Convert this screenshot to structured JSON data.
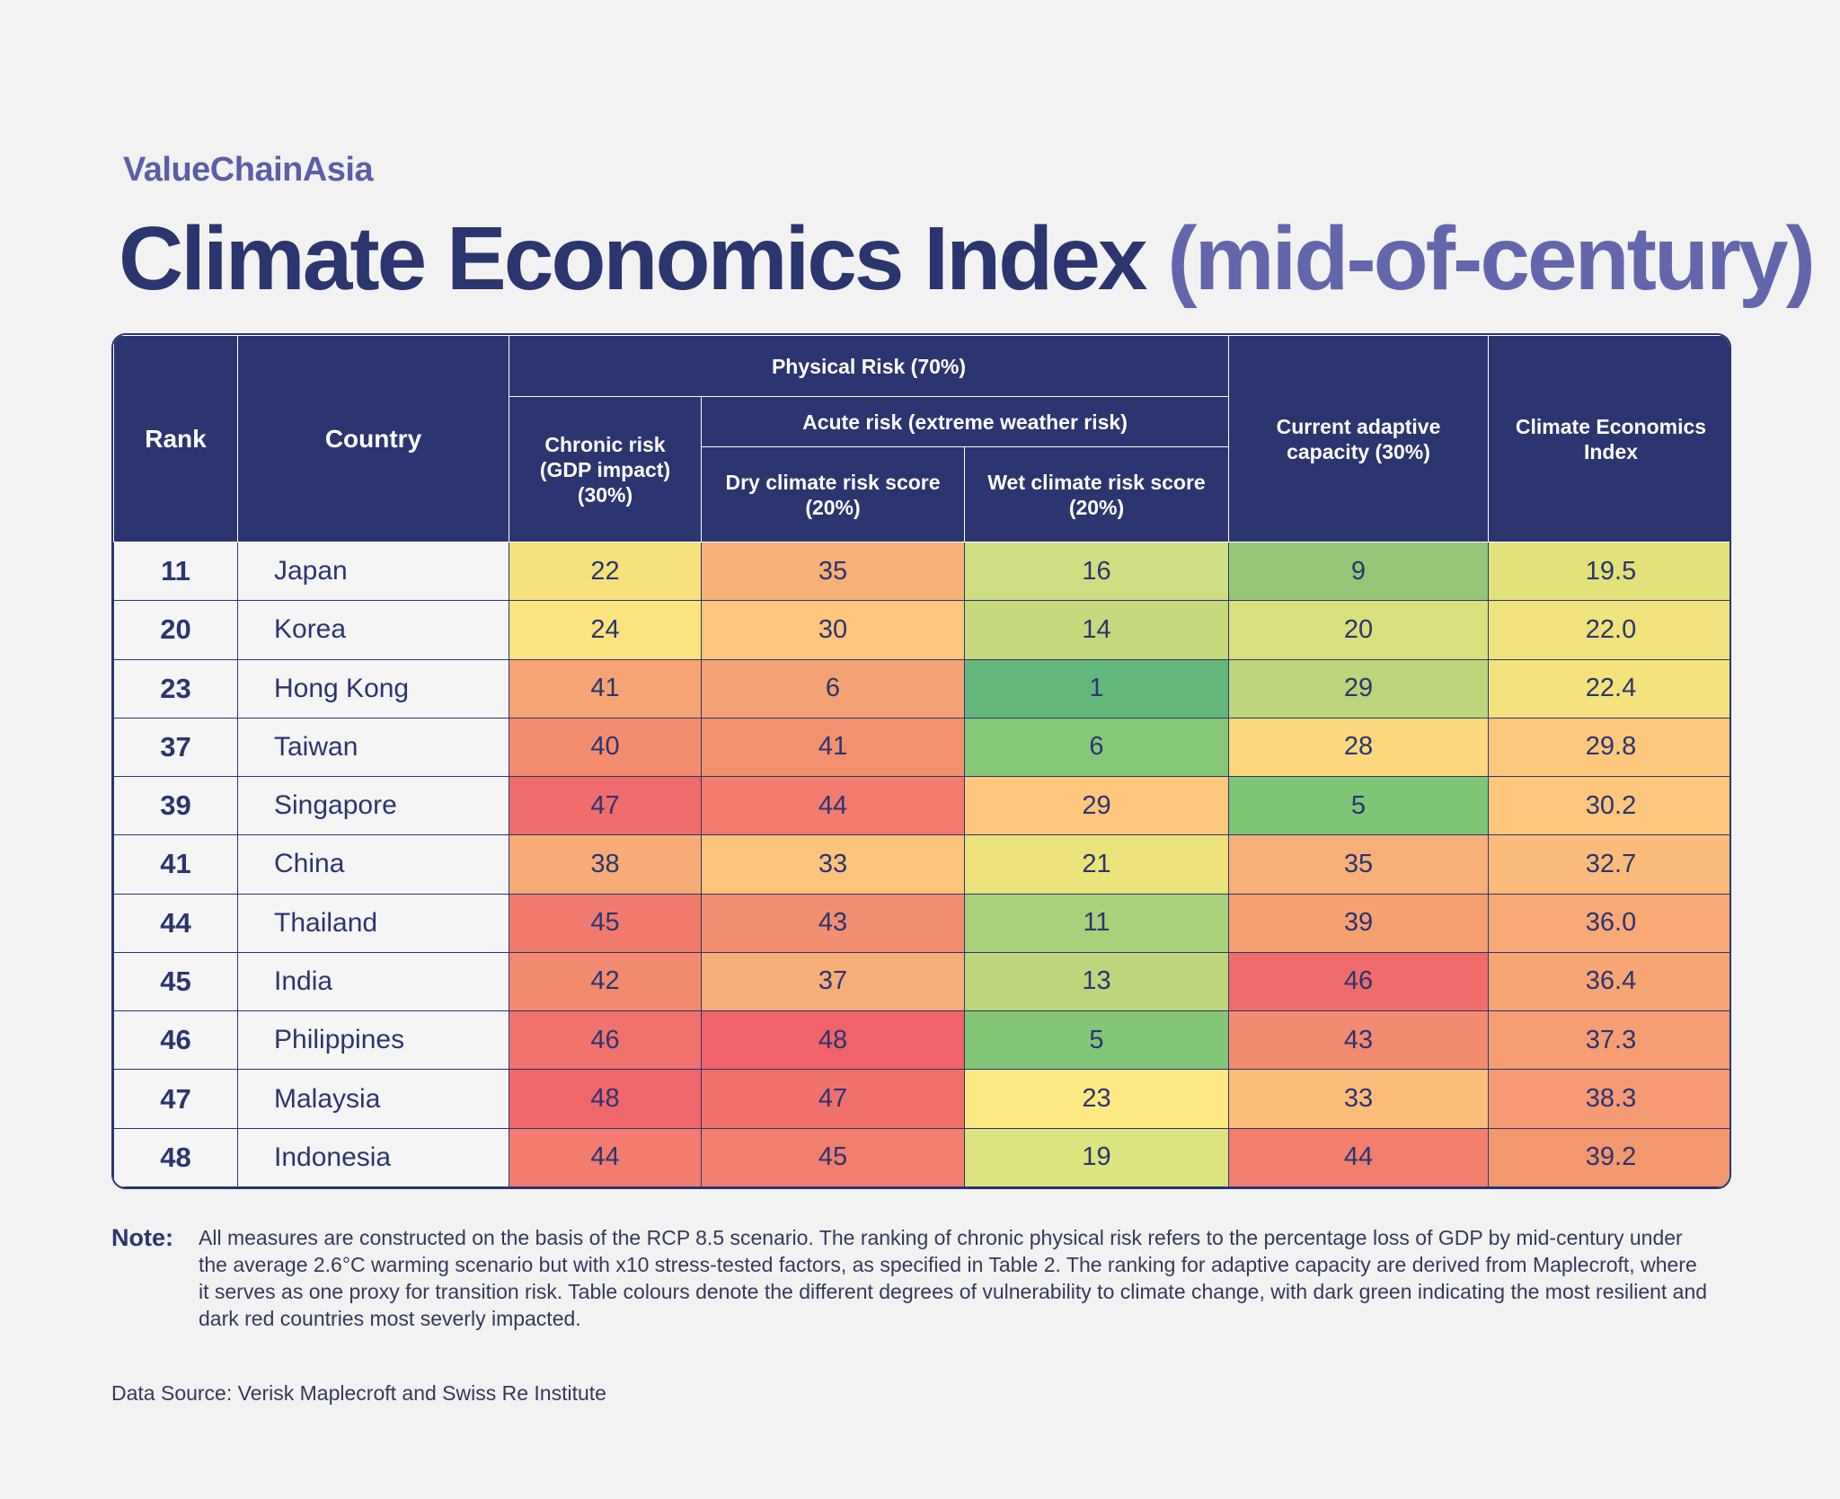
{
  "brand": "ValueChainAsia",
  "title": {
    "main": "Climate Economics Index",
    "sub": "(mid-of-century)"
  },
  "headers": {
    "rank": "Rank",
    "country": "Country",
    "physical": "Physical Risk (70%)",
    "chronic": "Chronic risk (GDP impact) (30%)",
    "acute": "Acute risk (extreme weather risk)",
    "dry": "Dry climate risk score (20%)",
    "wet": "Wet climate risk score (20%)",
    "adaptive": "Current adaptive capacity (30%)",
    "cei": "Climate Economics Index"
  },
  "chart_data": {
    "type": "table",
    "title": "Climate Economics Index (mid-of-century)",
    "columns": [
      "Rank",
      "Country",
      "Chronic risk (GDP impact) (30%)",
      "Dry climate risk score (20%)",
      "Wet climate risk score (20%)",
      "Current adaptive capacity (30%)",
      "Climate Economics Index"
    ],
    "rows": [
      {
        "rank": "11",
        "country": "Japan",
        "chronic": "22",
        "dry": "35",
        "wet": "16",
        "adaptive": "9",
        "cei": "19.5"
      },
      {
        "rank": "20",
        "country": "Korea",
        "chronic": "24",
        "dry": "30",
        "wet": "14",
        "adaptive": "20",
        "cei": "22.0"
      },
      {
        "rank": "23",
        "country": "Hong Kong",
        "chronic": "41",
        "dry": "6",
        "wet": "1",
        "adaptive": "29",
        "cei": "22.4"
      },
      {
        "rank": "37",
        "country": "Taiwan",
        "chronic": "40",
        "dry": "41",
        "wet": "6",
        "adaptive": "28",
        "cei": "29.8"
      },
      {
        "rank": "39",
        "country": "Singapore",
        "chronic": "47",
        "dry": "44",
        "wet": "29",
        "adaptive": "5",
        "cei": "30.2"
      },
      {
        "rank": "41",
        "country": "China",
        "chronic": "38",
        "dry": "33",
        "wet": "21",
        "adaptive": "35",
        "cei": "32.7"
      },
      {
        "rank": "44",
        "country": "Thailand",
        "chronic": "45",
        "dry": "43",
        "wet": "11",
        "adaptive": "39",
        "cei": "36.0"
      },
      {
        "rank": "45",
        "country": "India",
        "chronic": "42",
        "dry": "37",
        "wet": "13",
        "adaptive": "46",
        "cei": "36.4"
      },
      {
        "rank": "46",
        "country": "Philippines",
        "chronic": "46",
        "dry": "48",
        "wet": "5",
        "adaptive": "43",
        "cei": "37.3"
      },
      {
        "rank": "47",
        "country": "Malaysia",
        "chronic": "48",
        "dry": "47",
        "wet": "23",
        "adaptive": "33",
        "cei": "38.3"
      },
      {
        "rank": "48",
        "country": "Indonesia",
        "chronic": "44",
        "dry": "45",
        "wet": "19",
        "adaptive": "44",
        "cei": "39.2"
      }
    ],
    "cell_colors": [
      [
        "#f5e27a",
        "#f6b078",
        "#cfdd82",
        "#95c677",
        "#e3e17a"
      ],
      [
        "#fde47e",
        "#fdc57d",
        "#c6d97d",
        "#d9df7c",
        "#f0e27c"
      ],
      [
        "#f6a473",
        "#f4a176",
        "#64b77b",
        "#bcd57b",
        "#f4e27c"
      ],
      [
        "#f48d6f",
        "#f2906f",
        "#86c777",
        "#fbd77e",
        "#fcc87d"
      ],
      [
        "#ef6c6c",
        "#f27b6e",
        "#fdc77e",
        "#7ec576",
        "#fcc67d"
      ],
      [
        "#f7ac77",
        "#fcc37d",
        "#ece37b",
        "#f6b078",
        "#fbbb7a"
      ],
      [
        "#f07a6d",
        "#f28e71",
        "#a9d17c",
        "#f6a072",
        "#f8a976"
      ],
      [
        "#f38a70",
        "#f6ad77",
        "#bdd67e",
        "#ef6c6a",
        "#f7a574"
      ],
      [
        "#ef736c",
        "#ef6369",
        "#82c577",
        "#f28b70",
        "#f69d74"
      ],
      [
        "#ef6769",
        "#f0706c",
        "#fde983",
        "#fcbd7b",
        "#f59a74"
      ],
      [
        "#f27c6e",
        "#f27e6e",
        "#dbe47f",
        "#f27e6e",
        "#f3976f"
      ]
    ]
  },
  "note": {
    "label": "Note:",
    "text": "All measures are constructed on the basis of the RCP 8.5 scenario. The ranking of chronic physical risk refers to the percentage loss of GDP by mid-century under the average 2.6°C warming scenario but with x10 stress-tested factors, as specified in Table 2. The ranking for adaptive capacity are derived from Maplecroft, where it serves as one proxy for transition risk. Table colours denote the different degrees of vulnerability to climate change, with dark green indicating the most resilient and dark red countries most severly impacted."
  },
  "source": "Data Source: Verisk Maplecroft and Swiss Re Institute"
}
